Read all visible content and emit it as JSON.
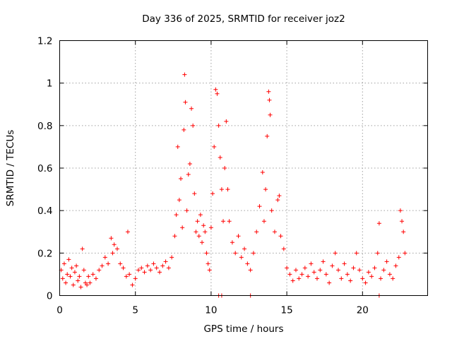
{
  "chart_data": {
    "type": "scatter",
    "title": "Day 336 of 2025, SRMTID for receiver joz2",
    "xlabel": "GPS time / hours",
    "ylabel": "SRMTID / TECUs",
    "xlim": [
      0,
      24.3
    ],
    "ylim": [
      0,
      1.2
    ],
    "xticks": [
      0,
      5,
      10,
      15,
      20
    ],
    "xtick_labels": [
      "0",
      "5",
      "10",
      "15",
      "20"
    ],
    "yticks": [
      0,
      0.2,
      0.4,
      0.6,
      0.8,
      1,
      1.2
    ],
    "ytick_labels": [
      "0",
      "0.2",
      "0.4",
      "0.6",
      "0.8",
      "1",
      "1.2"
    ],
    "grid": true,
    "marker": "+",
    "series": [
      {
        "name": "SRMTID",
        "color": "#ff0000",
        "points": [
          [
            0.1,
            0.12
          ],
          [
            0.2,
            0.08
          ],
          [
            0.3,
            0.15
          ],
          [
            0.4,
            0.06
          ],
          [
            0.5,
            0.1
          ],
          [
            0.6,
            0.17
          ],
          [
            0.7,
            0.09
          ],
          [
            0.8,
            0.13
          ],
          [
            0.9,
            0.05
          ],
          [
            1.0,
            0.11
          ],
          [
            1.1,
            0.14
          ],
          [
            1.2,
            0.07
          ],
          [
            1.3,
            0.09
          ],
          [
            1.4,
            0.04
          ],
          [
            1.5,
            0.22
          ],
          [
            1.6,
            0.12
          ],
          [
            1.7,
            0.06
          ],
          [
            1.8,
            0.05
          ],
          [
            1.9,
            0.09
          ],
          [
            2.0,
            0.06
          ],
          [
            2.2,
            0.1
          ],
          [
            2.4,
            0.08
          ],
          [
            2.6,
            0.12
          ],
          [
            2.8,
            0.14
          ],
          [
            3.0,
            0.18
          ],
          [
            3.2,
            0.15
          ],
          [
            3.4,
            0.27
          ],
          [
            3.5,
            0.2
          ],
          [
            3.6,
            0.24
          ],
          [
            3.8,
            0.22
          ],
          [
            4.0,
            0.15
          ],
          [
            4.2,
            0.13
          ],
          [
            4.4,
            0.09
          ],
          [
            4.5,
            0.3
          ],
          [
            4.6,
            0.1
          ],
          [
            4.8,
            0.05
          ],
          [
            5.0,
            0.08
          ],
          [
            5.2,
            0.12
          ],
          [
            5.4,
            0.13
          ],
          [
            5.6,
            0.11
          ],
          [
            5.8,
            0.14
          ],
          [
            6.0,
            0.12
          ],
          [
            6.2,
            0.15
          ],
          [
            6.4,
            0.13
          ],
          [
            6.6,
            0.11
          ],
          [
            6.8,
            0.14
          ],
          [
            7.0,
            0.16
          ],
          [
            7.2,
            0.13
          ],
          [
            7.4,
            0.18
          ],
          [
            7.6,
            0.28
          ],
          [
            7.7,
            0.38
          ],
          [
            7.8,
            0.7
          ],
          [
            7.9,
            0.45
          ],
          [
            8.0,
            0.55
          ],
          [
            8.1,
            0.32
          ],
          [
            8.2,
            0.78
          ],
          [
            8.25,
            1.04
          ],
          [
            8.3,
            0.91
          ],
          [
            8.4,
            0.4
          ],
          [
            8.5,
            0.57
          ],
          [
            8.6,
            0.62
          ],
          [
            8.7,
            0.88
          ],
          [
            8.8,
            0.8
          ],
          [
            8.9,
            0.48
          ],
          [
            9.0,
            0.3
          ],
          [
            9.1,
            0.35
          ],
          [
            9.2,
            0.28
          ],
          [
            9.3,
            0.38
          ],
          [
            9.4,
            0.25
          ],
          [
            9.5,
            0.33
          ],
          [
            9.6,
            0.3
          ],
          [
            9.7,
            0.2
          ],
          [
            9.8,
            0.15
          ],
          [
            9.9,
            0.12
          ],
          [
            10.0,
            0.32
          ],
          [
            10.1,
            0.48
          ],
          [
            10.2,
            0.7
          ],
          [
            10.3,
            0.97
          ],
          [
            10.4,
            0.95
          ],
          [
            10.5,
            0.8
          ],
          [
            10.6,
            0.65
          ],
          [
            10.7,
            0.5
          ],
          [
            10.8,
            0.35
          ],
          [
            10.9,
            0.6
          ],
          [
            11.0,
            0.82
          ],
          [
            11.1,
            0.5
          ],
          [
            11.2,
            0.35
          ],
          [
            11.4,
            0.25
          ],
          [
            11.6,
            0.2
          ],
          [
            11.8,
            0.28
          ],
          [
            12.0,
            0.18
          ],
          [
            12.2,
            0.22
          ],
          [
            12.4,
            0.15
          ],
          [
            12.6,
            0.12
          ],
          [
            12.8,
            0.2
          ],
          [
            13.0,
            0.3
          ],
          [
            13.2,
            0.42
          ],
          [
            13.4,
            0.58
          ],
          [
            13.5,
            0.35
          ],
          [
            13.6,
            0.5
          ],
          [
            13.7,
            0.75
          ],
          [
            13.8,
            0.96
          ],
          [
            13.85,
            0.92
          ],
          [
            13.9,
            0.85
          ],
          [
            14.0,
            0.4
          ],
          [
            14.2,
            0.3
          ],
          [
            14.4,
            0.45
          ],
          [
            14.5,
            0.47
          ],
          [
            14.6,
            0.28
          ],
          [
            14.8,
            0.22
          ],
          [
            15.0,
            0.13
          ],
          [
            15.2,
            0.1
          ],
          [
            15.4,
            0.07
          ],
          [
            15.6,
            0.12
          ],
          [
            15.8,
            0.08
          ],
          [
            16.0,
            0.1
          ],
          [
            16.2,
            0.13
          ],
          [
            16.4,
            0.09
          ],
          [
            16.6,
            0.15
          ],
          [
            16.8,
            0.11
          ],
          [
            17.0,
            0.08
          ],
          [
            17.2,
            0.12
          ],
          [
            17.4,
            0.16
          ],
          [
            17.6,
            0.1
          ],
          [
            17.8,
            0.06
          ],
          [
            18.0,
            0.14
          ],
          [
            18.2,
            0.2
          ],
          [
            18.4,
            0.12
          ],
          [
            18.6,
            0.08
          ],
          [
            18.8,
            0.15
          ],
          [
            19.0,
            0.1
          ],
          [
            19.2,
            0.07
          ],
          [
            19.4,
            0.13
          ],
          [
            19.6,
            0.2
          ],
          [
            19.8,
            0.12
          ],
          [
            20.0,
            0.08
          ],
          [
            20.2,
            0.06
          ],
          [
            20.4,
            0.11
          ],
          [
            20.6,
            0.09
          ],
          [
            20.8,
            0.13
          ],
          [
            21.0,
            0.2
          ],
          [
            21.1,
            0.34
          ],
          [
            21.2,
            0.08
          ],
          [
            21.4,
            0.12
          ],
          [
            21.6,
            0.16
          ],
          [
            21.8,
            0.1
          ],
          [
            22.0,
            0.08
          ],
          [
            22.2,
            0.14
          ],
          [
            22.4,
            0.18
          ],
          [
            22.5,
            0.4
          ],
          [
            22.6,
            0.35
          ],
          [
            22.7,
            0.3
          ],
          [
            22.8,
            0.2
          ],
          [
            10.5,
            0.0
          ],
          [
            10.7,
            0.0
          ],
          [
            12.6,
            0.0
          ],
          [
            21.1,
            0.0
          ]
        ]
      }
    ]
  }
}
